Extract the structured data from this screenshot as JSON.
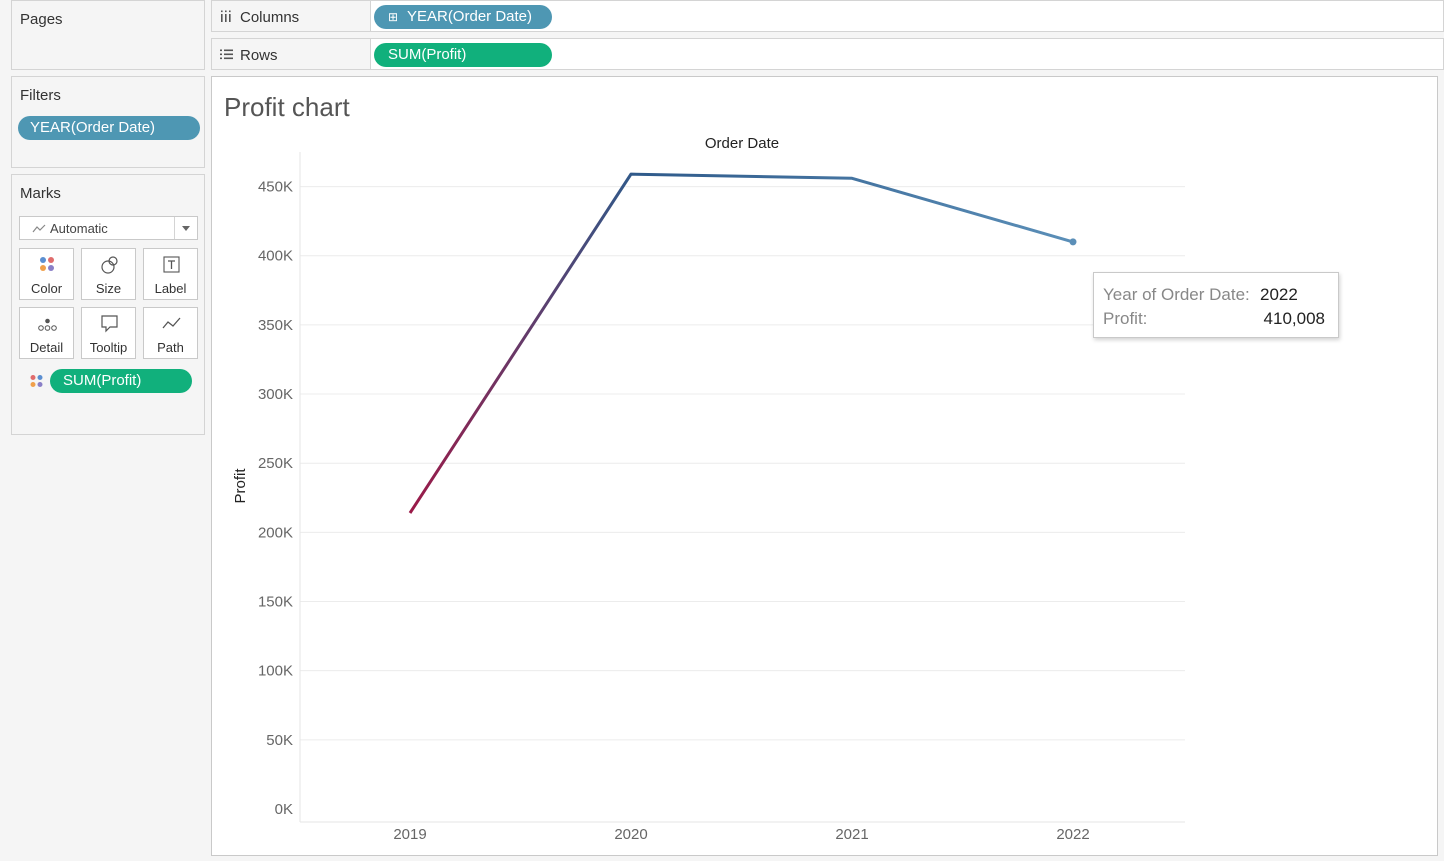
{
  "pages": {
    "title": "Pages"
  },
  "filters": {
    "title": "Filters",
    "pills": [
      "YEAR(Order Date)"
    ]
  },
  "marks": {
    "title": "Marks",
    "type": "Automatic",
    "buttons": {
      "color": "Color",
      "size": "Size",
      "label": "Label",
      "detail": "Detail",
      "tooltip": "Tooltip",
      "path": "Path"
    },
    "color_pill": "SUM(Profit)"
  },
  "shelves": {
    "columns": {
      "label": "Columns",
      "pill": "YEAR(Order Date)",
      "pill_icon": "⊞"
    },
    "rows": {
      "label": "Rows",
      "pill": "SUM(Profit)"
    }
  },
  "worksheet": {
    "title": "Profit chart"
  },
  "colors": {
    "pill_blue": "#4e97b3",
    "pill_green": "#11b07c",
    "line_start": "#9b1a48",
    "line_end": "#5b8fb8",
    "line_mid": "#2f5a8a"
  },
  "chart_data": {
    "type": "line",
    "title": "Order Date",
    "xlabel": "Order Date",
    "ylabel": "Profit",
    "x": [
      "2019",
      "2020",
      "2021",
      "2022"
    ],
    "series": [
      {
        "values": [
          214000,
          459000,
          456000,
          410008
        ]
      }
    ],
    "ylim": [
      0,
      475000
    ],
    "yticks": [
      0,
      50000,
      100000,
      150000,
      200000,
      250000,
      300000,
      350000,
      400000,
      450000
    ],
    "ytick_labels": [
      "0K",
      "50K",
      "100K",
      "150K",
      "200K",
      "250K",
      "300K",
      "350K",
      "400K",
      "450K"
    ],
    "grid": true
  },
  "tooltip": {
    "rows": [
      {
        "key": "Year of Order Date:",
        "value": "2022"
      },
      {
        "key": "Profit:",
        "value": "410,008"
      }
    ]
  }
}
